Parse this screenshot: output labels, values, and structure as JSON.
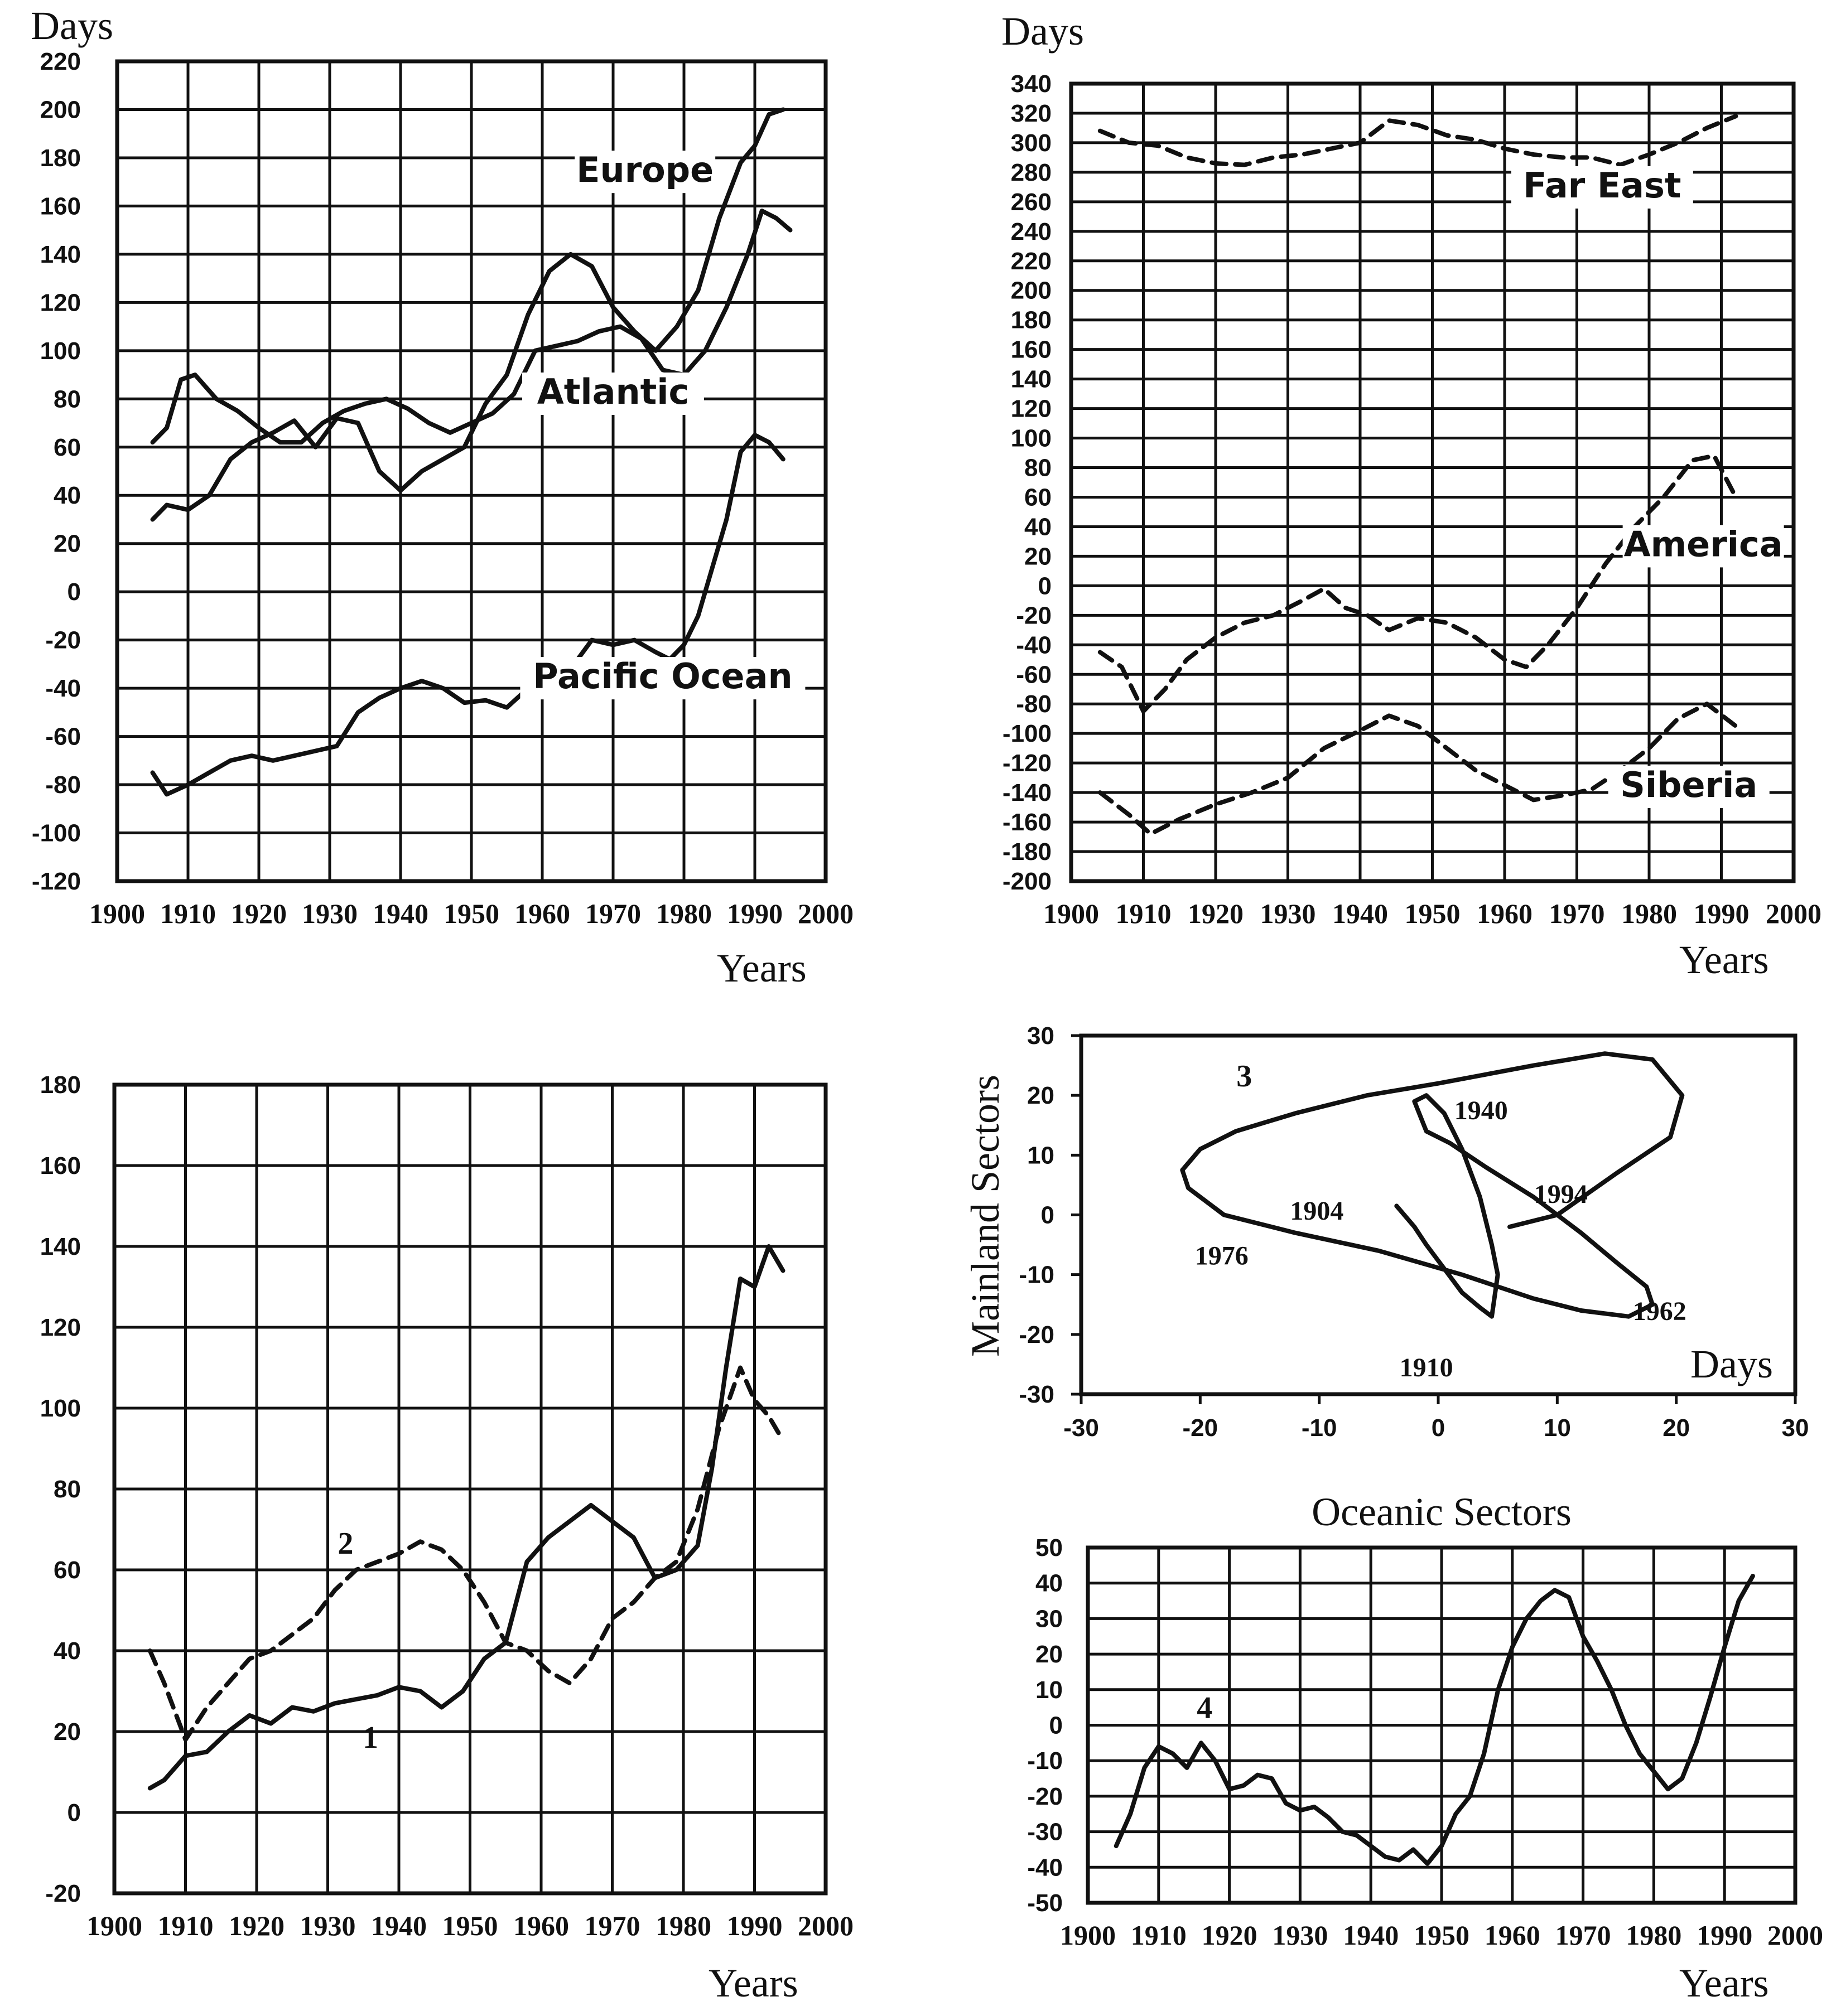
{
  "chart_data": [
    {
      "id": "p1",
      "type": "line",
      "title": "",
      "ylabel": "Days",
      "xlabel": "Years",
      "xlim": [
        1900,
        2000
      ],
      "ylim": [
        -120,
        220
      ],
      "xticks": [
        1900,
        1910,
        1920,
        1930,
        1940,
        1950,
        1960,
        1970,
        1980,
        1990,
        2000
      ],
      "yticks": [
        -120,
        -100,
        -80,
        -60,
        -40,
        -20,
        0,
        20,
        40,
        60,
        80,
        100,
        120,
        140,
        160,
        180,
        200,
        220
      ],
      "grid": true,
      "series": [
        {
          "name": "Europe",
          "style": "solid",
          "x": [
            1905,
            1907,
            1910,
            1913,
            1916,
            1919,
            1922,
            1925,
            1928,
            1931,
            1934,
            1937,
            1940,
            1943,
            1946,
            1949,
            1952,
            1955,
            1958,
            1961,
            1964,
            1967,
            1970,
            1973,
            1976,
            1979,
            1982,
            1985,
            1988,
            1990,
            1992,
            1994
          ],
          "values": [
            30,
            36,
            34,
            40,
            55,
            62,
            66,
            71,
            60,
            72,
            70,
            50,
            42,
            50,
            55,
            60,
            78,
            90,
            115,
            133,
            140,
            135,
            118,
            108,
            100,
            110,
            125,
            155,
            178,
            185,
            198,
            200
          ]
        },
        {
          "name": "Atlantic",
          "style": "solid",
          "x": [
            1905,
            1907,
            1909,
            1911,
            1914,
            1917,
            1920,
            1923,
            1926,
            1929,
            1932,
            1935,
            1938,
            1941,
            1944,
            1947,
            1950,
            1953,
            1956,
            1959,
            1962,
            1965,
            1968,
            1971,
            1974,
            1977,
            1980,
            1983,
            1986,
            1989,
            1991,
            1993,
            1995
          ],
          "values": [
            62,
            68,
            88,
            90,
            80,
            75,
            68,
            62,
            62,
            70,
            75,
            78,
            80,
            76,
            70,
            66,
            70,
            74,
            82,
            100,
            102,
            104,
            108,
            110,
            105,
            92,
            90,
            100,
            118,
            140,
            158,
            155,
            150
          ]
        },
        {
          "name": "Pacific Ocean",
          "style": "solid",
          "x": [
            1905,
            1907,
            1910,
            1913,
            1916,
            1919,
            1922,
            1925,
            1928,
            1931,
            1934,
            1937,
            1940,
            1943,
            1946,
            1949,
            1952,
            1955,
            1958,
            1961,
            1964,
            1967,
            1970,
            1973,
            1976,
            1978,
            1980,
            1982,
            1984,
            1986,
            1988,
            1990,
            1992,
            1994
          ],
          "values": [
            -75,
            -84,
            -80,
            -75,
            -70,
            -68,
            -70,
            -68,
            -66,
            -64,
            -50,
            -44,
            -40,
            -37,
            -40,
            -46,
            -45,
            -48,
            -40,
            -35,
            -32,
            -20,
            -22,
            -20,
            -25,
            -28,
            -22,
            -10,
            10,
            30,
            58,
            65,
            62,
            55
          ]
        }
      ],
      "labels": [
        "Europe",
        "Atlantic",
        "Pacific Ocean"
      ]
    },
    {
      "id": "p2",
      "type": "line",
      "title": "",
      "ylabel": "Days",
      "xlabel": "Years",
      "xlim": [
        1900,
        2000
      ],
      "ylim": [
        -200,
        340
      ],
      "xticks": [
        1900,
        1910,
        1920,
        1930,
        1940,
        1950,
        1960,
        1970,
        1980,
        1990,
        2000
      ],
      "yticks": [
        -200,
        -180,
        -160,
        -140,
        -120,
        -100,
        -80,
        -60,
        -40,
        -20,
        0,
        20,
        40,
        60,
        80,
        100,
        120,
        140,
        160,
        180,
        200,
        220,
        240,
        260,
        280,
        300,
        320,
        340
      ],
      "grid": true,
      "series": [
        {
          "name": "Far East",
          "style": "dashed",
          "x": [
            1904,
            1908,
            1912,
            1916,
            1920,
            1924,
            1928,
            1932,
            1936,
            1940,
            1944,
            1948,
            1952,
            1956,
            1960,
            1964,
            1968,
            1972,
            1976,
            1980,
            1984,
            1988,
            1992
          ],
          "values": [
            308,
            300,
            298,
            290,
            286,
            285,
            290,
            292,
            296,
            300,
            315,
            312,
            305,
            302,
            296,
            292,
            290,
            290,
            285,
            292,
            300,
            310,
            318
          ]
        },
        {
          "name": "America",
          "style": "dashed",
          "x": [
            1904,
            1907,
            1910,
            1913,
            1916,
            1920,
            1924,
            1928,
            1932,
            1935,
            1938,
            1941,
            1944,
            1948,
            1952,
            1956,
            1960,
            1963,
            1966,
            1970,
            1974,
            1978,
            1982,
            1986,
            1989,
            1992
          ],
          "values": [
            -45,
            -55,
            -85,
            -70,
            -50,
            -35,
            -25,
            -20,
            -10,
            -2,
            -15,
            -20,
            -30,
            -22,
            -25,
            -35,
            -50,
            -55,
            -40,
            -15,
            15,
            40,
            60,
            85,
            88,
            60
          ]
        },
        {
          "name": "Siberia",
          "style": "dashed",
          "x": [
            1904,
            1908,
            1911,
            1915,
            1920,
            1925,
            1930,
            1935,
            1940,
            1944,
            1948,
            1952,
            1956,
            1960,
            1964,
            1968,
            1972,
            1976,
            1980,
            1984,
            1988,
            1992
          ],
          "values": [
            -140,
            -155,
            -168,
            -158,
            -148,
            -140,
            -130,
            -110,
            -98,
            -88,
            -95,
            -110,
            -125,
            -135,
            -145,
            -142,
            -138,
            -125,
            -110,
            -90,
            -80,
            -95
          ]
        }
      ],
      "labels": [
        "Far East",
        "America",
        "Siberia"
      ]
    },
    {
      "id": "p3",
      "type": "line",
      "title": "",
      "ylabel": "",
      "xlabel": "Years",
      "xlim": [
        1900,
        2000
      ],
      "ylim": [
        -20,
        180
      ],
      "xticks": [
        1900,
        1910,
        1920,
        1930,
        1940,
        1950,
        1960,
        1970,
        1980,
        1990,
        2000
      ],
      "yticks": [
        -20,
        0,
        20,
        40,
        60,
        80,
        100,
        120,
        140,
        160,
        180
      ],
      "grid": true,
      "series": [
        {
          "name": "1",
          "style": "solid",
          "x": [
            1905,
            1907,
            1910,
            1913,
            1916,
            1919,
            1922,
            1925,
            1928,
            1931,
            1934,
            1937,
            1940,
            1943,
            1946,
            1949,
            1952,
            1955,
            1958,
            1961,
            1964,
            1967,
            1970,
            1973,
            1976,
            1979,
            1982,
            1984,
            1986,
            1988,
            1990,
            1992,
            1994
          ],
          "values": [
            6,
            8,
            14,
            15,
            20,
            24,
            22,
            26,
            25,
            27,
            28,
            29,
            31,
            30,
            26,
            30,
            38,
            42,
            62,
            68,
            72,
            76,
            72,
            68,
            58,
            60,
            66,
            85,
            110,
            132,
            130,
            140,
            134
          ]
        },
        {
          "name": "2",
          "style": "dashed",
          "x": [
            1905,
            1907,
            1910,
            1913,
            1916,
            1919,
            1922,
            1925,
            1928,
            1931,
            1934,
            1937,
            1940,
            1943,
            1946,
            1949,
            1952,
            1955,
            1958,
            1961,
            1964,
            1967,
            1970,
            1973,
            1976,
            1979,
            1982,
            1985,
            1988,
            1990,
            1992,
            1994
          ],
          "values": [
            40,
            32,
            18,
            26,
            32,
            38,
            40,
            44,
            48,
            55,
            60,
            62,
            64,
            67,
            65,
            60,
            52,
            42,
            40,
            35,
            32,
            38,
            48,
            52,
            58,
            62,
            75,
            95,
            110,
            102,
            98,
            92
          ]
        }
      ],
      "labels": [
        "2",
        "1"
      ]
    },
    {
      "id": "p4",
      "type": "line",
      "title": "",
      "ylabel": "Mainland Sectors",
      "xlabel": "Days",
      "xlim": [
        -30,
        30
      ],
      "ylim": [
        -30,
        30
      ],
      "xticks": [
        -30,
        -20,
        -10,
        0,
        10,
        20,
        30
      ],
      "yticks": [
        -30,
        -20,
        -10,
        0,
        10,
        20,
        30
      ],
      "grid": false,
      "series": [
        {
          "name": "3",
          "style": "solid",
          "x": [
            -3.5,
            -2.0,
            -1.0,
            0.5,
            2.0,
            3.5,
            4.5,
            5.0,
            4.5,
            3.5,
            2.0,
            0.5,
            -1.0,
            -2.0,
            -1.0,
            1.0,
            4.0,
            8.0,
            12.0,
            15.0,
            17.5,
            18.0,
            16.0,
            12.0,
            8.0,
            2.0,
            -5.0,
            -12.0,
            -18.0,
            -21.0,
            -21.5,
            -20.0,
            -17.0,
            -12.0,
            -6.0,
            0.0,
            8.0,
            14.0,
            18.0,
            20.5,
            19.5,
            15.0,
            10.0,
            6.0
          ],
          "y": [
            1.5,
            -2.0,
            -5.0,
            -9.0,
            -13.0,
            -15.5,
            -17.0,
            -10.0,
            -5.0,
            3.0,
            11.0,
            17.0,
            20.0,
            19.0,
            14.0,
            12.0,
            8.0,
            3.0,
            -3.0,
            -8.0,
            -12.0,
            -15.0,
            -17.0,
            -16.0,
            -14.0,
            -10.0,
            -6.0,
            -3.0,
            0.0,
            4.5,
            7.5,
            11.0,
            14.0,
            17.0,
            20.0,
            22.0,
            25.0,
            27.0,
            26.0,
            20.0,
            13.0,
            7.0,
            0.0,
            -2.0
          ]
        }
      ],
      "annotations": [
        "1940",
        "1994",
        "1904",
        "1976",
        "1962",
        "1910"
      ],
      "labels": [
        "3"
      ]
    },
    {
      "id": "p5",
      "type": "line",
      "title": "Oceanic Sectors",
      "ylabel": "",
      "xlabel": "Years",
      "xlim": [
        1900,
        2000
      ],
      "ylim": [
        -50,
        50
      ],
      "xticks": [
        1900,
        1910,
        1920,
        1930,
        1940,
        1950,
        1960,
        1970,
        1980,
        1990,
        2000
      ],
      "yticks": [
        -50,
        -40,
        -30,
        -20,
        -10,
        0,
        10,
        20,
        30,
        40,
        50
      ],
      "grid": true,
      "series": [
        {
          "name": "4",
          "style": "solid",
          "x": [
            1904,
            1906,
            1908,
            1910,
            1912,
            1914,
            1916,
            1918,
            1920,
            1922,
            1924,
            1926,
            1928,
            1930,
            1932,
            1934,
            1936,
            1938,
            1940,
            1942,
            1944,
            1946,
            1948,
            1950,
            1952,
            1954,
            1956,
            1958,
            1960,
            1962,
            1964,
            1966,
            1968,
            1970,
            1972,
            1974,
            1976,
            1978,
            1980,
            1982,
            1984,
            1986,
            1988,
            1990,
            1992,
            1994
          ],
          "values": [
            -34,
            -25,
            -12,
            -6,
            -8,
            -12,
            -5,
            -10,
            -18,
            -17,
            -14,
            -15,
            -22,
            -24,
            -23,
            -26,
            -30,
            -31,
            -34,
            -37,
            -38,
            -35,
            -39,
            -34,
            -25,
            -20,
            -8,
            10,
            22,
            30,
            35,
            38,
            36,
            25,
            18,
            10,
            0,
            -8,
            -13,
            -18,
            -15,
            -5,
            8,
            22,
            35,
            42
          ]
        }
      ],
      "labels": [
        "4"
      ]
    }
  ]
}
